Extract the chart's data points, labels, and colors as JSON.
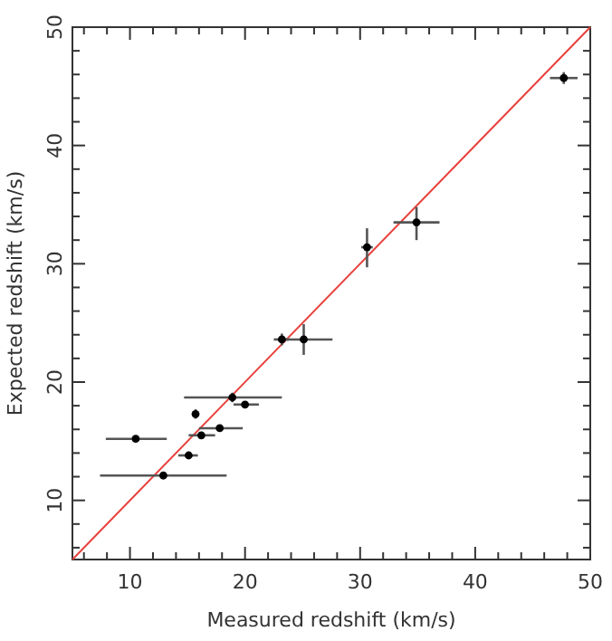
{
  "chart_data": {
    "type": "scatter",
    "xlabel": "Measured redshift (km/s)",
    "ylabel": "Expected redshift (km/s)",
    "xlim": [
      5,
      50
    ],
    "ylim": [
      5,
      50
    ],
    "xticks": [
      {
        "value": 6,
        "label": null
      },
      {
        "value": 8,
        "label": null
      },
      10,
      {
        "value": 12,
        "label": null
      },
      {
        "value": 14,
        "label": null
      },
      {
        "value": 16,
        "label": null
      },
      {
        "value": 18,
        "label": null
      },
      20,
      {
        "value": 22,
        "label": null
      },
      {
        "value": 24,
        "label": null
      },
      {
        "value": 26,
        "label": null
      },
      {
        "value": 28,
        "label": null
      },
      30,
      {
        "value": 32,
        "label": null
      },
      {
        "value": 34,
        "label": null
      },
      {
        "value": 36,
        "label": null
      },
      {
        "value": 38,
        "label": null
      },
      40,
      {
        "value": 42,
        "label": null
      },
      {
        "value": 44,
        "label": null
      },
      {
        "value": 46,
        "label": null
      },
      {
        "value": 48,
        "label": null
      },
      50
    ],
    "yticks": [
      {
        "value": 6,
        "label": null
      },
      {
        "value": 8,
        "label": null
      },
      10,
      {
        "value": 12,
        "label": null
      },
      {
        "value": 14,
        "label": null
      },
      {
        "value": 16,
        "label": null
      },
      {
        "value": 18,
        "label": null
      },
      20,
      {
        "value": 22,
        "label": null
      },
      {
        "value": 24,
        "label": null
      },
      {
        "value": 26,
        "label": null
      },
      {
        "value": 28,
        "label": null
      },
      30,
      {
        "value": 32,
        "label": null
      },
      {
        "value": 34,
        "label": null
      },
      {
        "value": 36,
        "label": null
      },
      {
        "value": 38,
        "label": null
      },
      40,
      {
        "value": 42,
        "label": null
      },
      {
        "value": 44,
        "label": null
      },
      {
        "value": 46,
        "label": null
      },
      {
        "value": 48,
        "label": null
      },
      50
    ],
    "grid": false,
    "series": [
      {
        "color": "#000000",
        "marker": "circle",
        "x": [
          10.5,
          12.9,
          15.1,
          15.7,
          16.2,
          17.8,
          18.9,
          20.0,
          23.2,
          25.1,
          30.6,
          34.9,
          47.7
        ],
        "values": [
          15.2,
          12.1,
          13.8,
          17.3,
          15.5,
          16.1,
          18.7,
          18.1,
          23.6,
          23.6,
          31.4,
          33.5,
          45.7
        ],
        "xerrors": [
          [
            7.9,
            13.2
          ],
          [
            7.4,
            18.4
          ],
          [
            14.2,
            15.9
          ],
          null,
          [
            15.1,
            17.4
          ],
          [
            16.0,
            19.8
          ],
          [
            14.7,
            23.2
          ],
          [
            19.0,
            21.2
          ],
          [
            22.5,
            23.8
          ],
          [
            22.9,
            27.6
          ],
          [
            30.1,
            31.1
          ],
          [
            32.9,
            36.9
          ],
          [
            46.5,
            48.9
          ]
        ],
        "errors": [
          null,
          null,
          null,
          [
            16.9,
            17.7
          ],
          null,
          null,
          [
            18.3,
            19.1
          ],
          null,
          [
            23.1,
            24.1
          ],
          [
            22.3,
            24.9
          ],
          [
            29.7,
            33.0
          ],
          [
            32.0,
            34.8
          ],
          [
            45.2,
            46.2
          ]
        ]
      },
      {
        "type": "line",
        "color": "#e8413c",
        "x": [
          5,
          50
        ],
        "values": [
          5,
          50
        ],
        "marker": "none"
      }
    ]
  }
}
